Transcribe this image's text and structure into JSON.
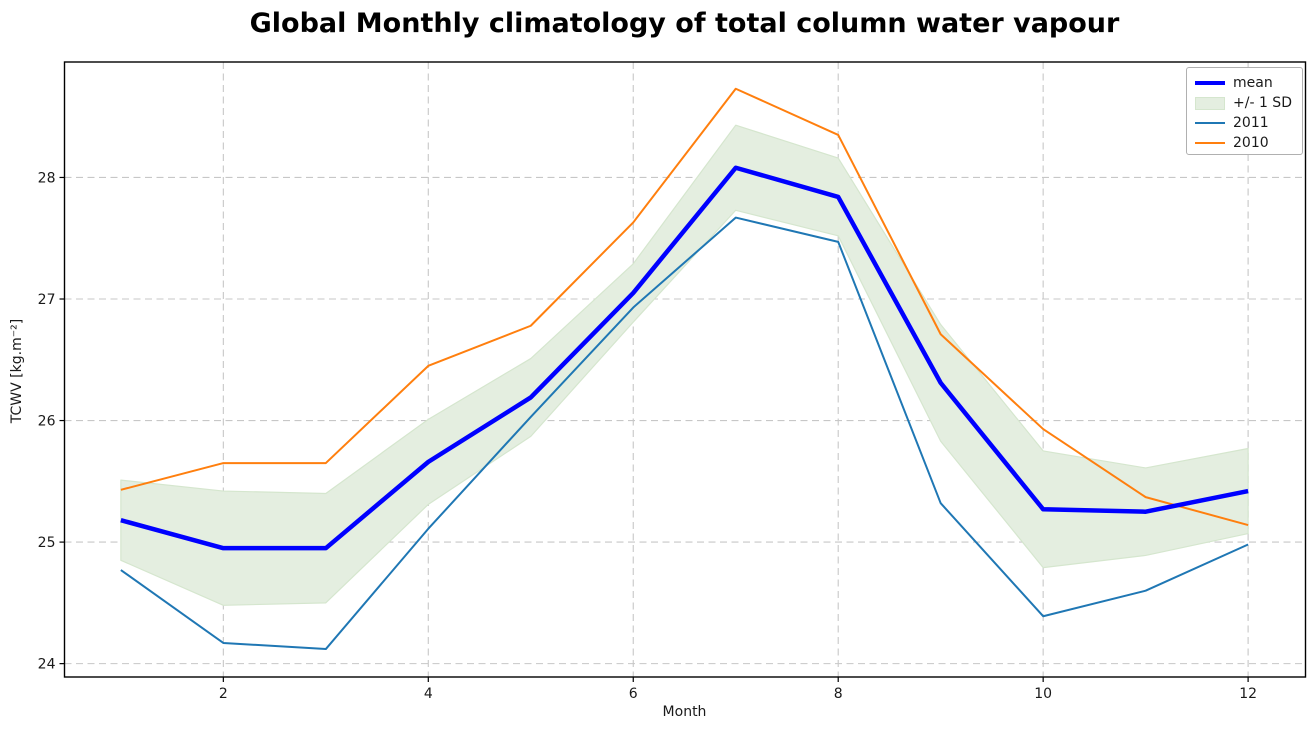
{
  "chart_data": {
    "type": "line",
    "title": "Global Monthly climatology of total column water vapour",
    "xlabel": "Month",
    "ylabel": "TCWV [kg.m⁻²]",
    "x": [
      1,
      2,
      3,
      4,
      5,
      6,
      7,
      8,
      9,
      10,
      11,
      12
    ],
    "series": [
      {
        "name": "mean",
        "color": "#0000ff",
        "linewidth": 4.5,
        "values": [
          25.18,
          24.95,
          24.95,
          25.66,
          26.19,
          27.05,
          28.08,
          27.84,
          26.31,
          25.27,
          25.25,
          25.42
        ]
      },
      {
        "name": "2011",
        "color": "#1f77b4",
        "linewidth": 2,
        "values": [
          24.77,
          24.17,
          24.12,
          25.11,
          26.03,
          26.93,
          27.67,
          27.47,
          25.32,
          24.39,
          24.6,
          24.98
        ]
      },
      {
        "name": "2010",
        "color": "#ff7f0e",
        "linewidth": 2,
        "values": [
          25.43,
          25.65,
          25.65,
          26.45,
          26.78,
          27.63,
          28.73,
          28.35,
          26.71,
          25.93,
          25.37,
          25.14
        ]
      }
    ],
    "band": {
      "name": "+/- 1 SD",
      "fill": "#e4eee0",
      "edge": "#d5e6ce",
      "upper": [
        25.51,
        25.42,
        25.4,
        26.01,
        26.51,
        27.29,
        28.43,
        28.16,
        26.79,
        25.75,
        25.61,
        25.77
      ],
      "lower": [
        24.85,
        24.48,
        24.5,
        25.31,
        25.87,
        26.81,
        27.73,
        27.52,
        25.83,
        24.79,
        24.89,
        25.07
      ]
    },
    "xticks": [
      2,
      4,
      6,
      8,
      10,
      12
    ],
    "yticks": [
      24,
      25,
      26,
      27,
      28
    ],
    "xlim": [
      0.45,
      12.56
    ],
    "ylim": [
      23.89,
      28.95
    ],
    "grid": true,
    "grid_style": "dashed",
    "legend_position": "upper right",
    "legend_items": [
      {
        "label": "mean",
        "swatch": "thick-line",
        "color": "#0000ff"
      },
      {
        "label": "+/- 1 SD",
        "swatch": "patch",
        "color": "#e4eee0",
        "edge": "#d5e6ce"
      },
      {
        "label": "2011",
        "swatch": "line",
        "color": "#1f77b4"
      },
      {
        "label": "2010",
        "swatch": "line",
        "color": "#ff7f0e"
      }
    ],
    "colors": {
      "grid": "#c7c7c7",
      "spine": "#000000",
      "text": "#1a1a1a",
      "legend_border": "#b0b0b0",
      "background": "#ffffff"
    }
  }
}
